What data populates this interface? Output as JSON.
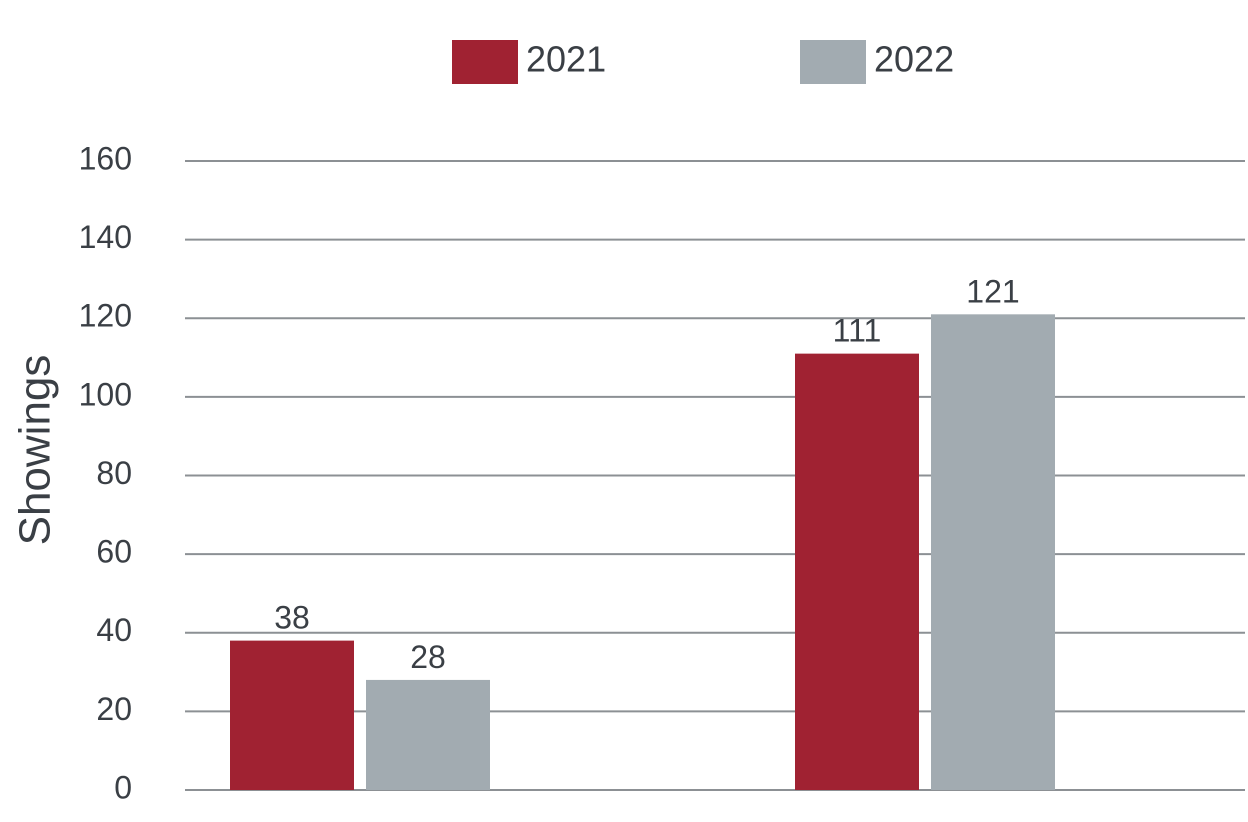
{
  "chart_data": {
    "type": "bar",
    "categories": [
      "",
      ""
    ],
    "series": [
      {
        "name": "2021",
        "color": "#a02232",
        "values": [
          38,
          111
        ]
      },
      {
        "name": "2022",
        "color": "#a2abb1",
        "values": [
          28,
          121
        ]
      }
    ],
    "ylabel": "Showings",
    "ylim": [
      0,
      160
    ],
    "yticks": [
      0,
      20,
      40,
      60,
      80,
      100,
      120,
      140,
      160
    ],
    "grid": true,
    "legend_position": "top-center",
    "grid_color": "#8c9094"
  }
}
